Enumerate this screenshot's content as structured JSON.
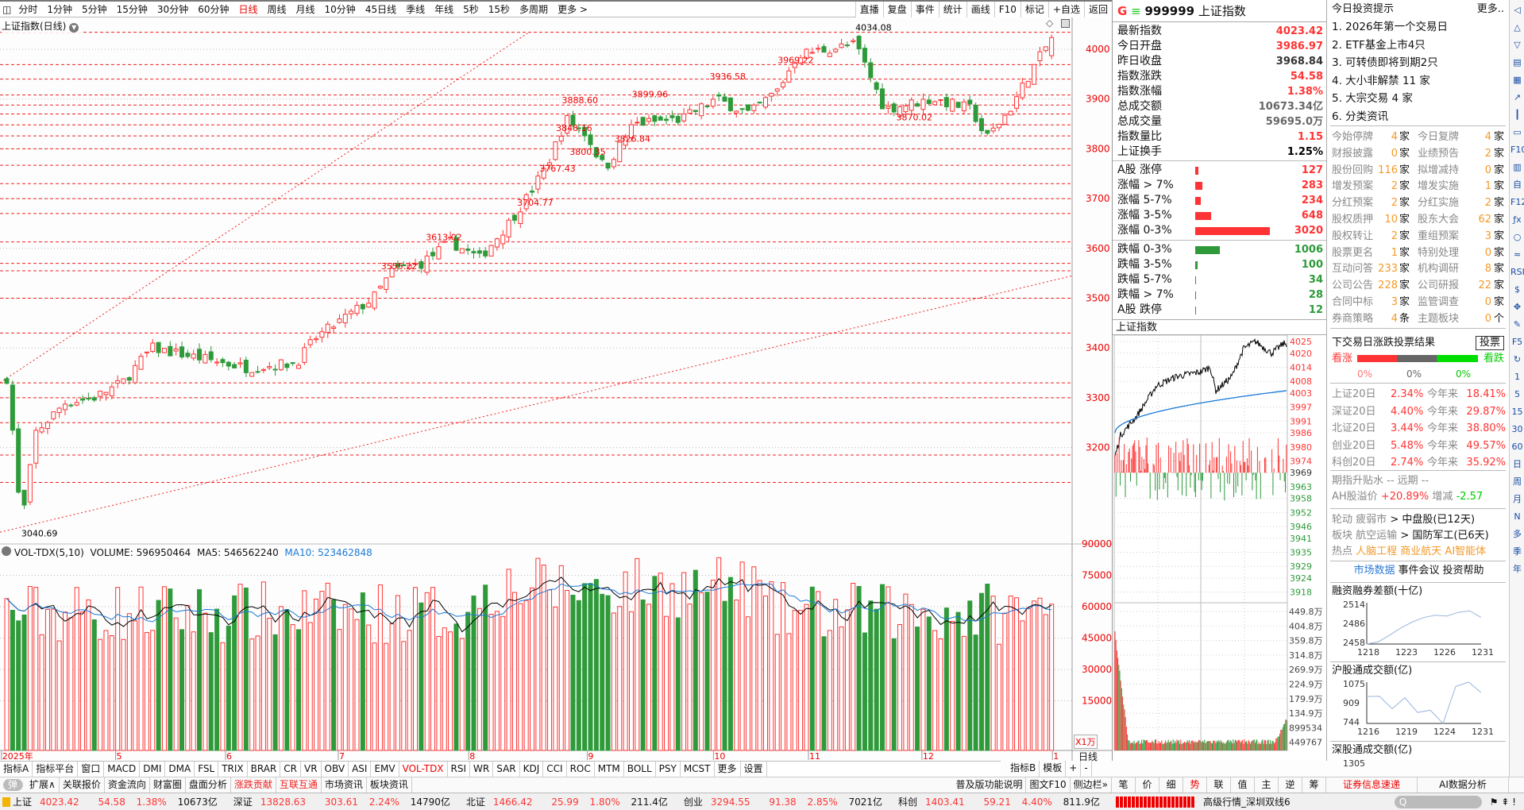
{
  "toolbar": {
    "periods": [
      "分时",
      "1分钟",
      "5分钟",
      "15分钟",
      "30分钟",
      "60分钟",
      "日线",
      "周线",
      "月线",
      "10分钟",
      "45日线",
      "季线",
      "年线",
      "5秒",
      "15秒",
      "多周期",
      "更多 >"
    ],
    "active": "日线",
    "buttons": [
      "直播",
      "复盘",
      "事件",
      "统计",
      "画线",
      "F10",
      "标记",
      "+自选",
      "返回"
    ]
  },
  "chart": {
    "title": "上证指数(日线)",
    "price_ticks": [
      "4000",
      "3900",
      "3800",
      "3700",
      "3600",
      "3500",
      "3400",
      "3300",
      "3200"
    ],
    "annotations": [
      "4034.08",
      "3969.22",
      "3936.58",
      "3899.96",
      "3888.60",
      "3848.16",
      "3826.84",
      "3800.35",
      "3870.02",
      "3767.43",
      "3704.77",
      "3613.02",
      "3555.22",
      "3040.69"
    ],
    "date_ticks": [
      "2025年",
      "5",
      "6",
      "7",
      "8",
      "9",
      "10",
      "11",
      "12",
      "1"
    ],
    "period_label": "日线"
  },
  "volume": {
    "header": "VOL-TDX(5,10)",
    "volume": "VOLUME: 596950464",
    "ma5": "MA5: 546562240",
    "ma10": "MA10: 523462848",
    "ticks": [
      "90000",
      "75000",
      "60000",
      "45000",
      "30000",
      "15000"
    ],
    "unit": "X1万"
  },
  "quote": {
    "brand_g": "G",
    "code": "999999",
    "name": "上证指数",
    "rows": [
      {
        "label": "最新指数",
        "value": "4023.42",
        "c": "red"
      },
      {
        "label": "今日开盘",
        "value": "3986.97",
        "c": "red"
      },
      {
        "label": "昨日收盘",
        "value": "3968.84",
        "c": "dark"
      },
      {
        "label": "指数涨跌",
        "value": "54.58",
        "c": "red"
      },
      {
        "label": "指数涨幅",
        "value": "1.38%",
        "c": "red"
      },
      {
        "label": "总成交额",
        "value": "10673.34亿",
        "c": "gray"
      },
      {
        "label": "总成交量",
        "value": "59695.0万",
        "c": "gray"
      },
      {
        "label": "指数量比",
        "value": "1.15",
        "c": "red"
      },
      {
        "label": "上证换手",
        "value": "1.25%",
        "c": "black"
      }
    ],
    "up": [
      {
        "label": "A股 涨停",
        "value": "127"
      },
      {
        "label": "涨幅 > 7%",
        "value": "283"
      },
      {
        "label": "涨幅 5-7%",
        "value": "234"
      },
      {
        "label": "涨幅 3-5%",
        "value": "648"
      },
      {
        "label": "涨幅 0-3%",
        "value": "3020"
      }
    ],
    "down": [
      {
        "label": "跌幅 0-3%",
        "value": "1006"
      },
      {
        "label": "跌幅 3-5%",
        "value": "100"
      },
      {
        "label": "跌幅 5-7%",
        "value": "34"
      },
      {
        "label": "跌幅 > 7%",
        "value": "28"
      },
      {
        "label": "A股 跌停",
        "value": "12"
      }
    ]
  },
  "intraday": {
    "title": "上证指数",
    "price_ticks": [
      "4025",
      "4020",
      "4014",
      "4008",
      "4003",
      "3997",
      "3991",
      "3986",
      "3980",
      "3974",
      "3969",
      "3963",
      "3958",
      "3952",
      "3946",
      "3941",
      "3935",
      "3929",
      "3924",
      "3918"
    ],
    "vol_ticks": [
      "449.8万",
      "404.8万",
      "359.8万",
      "314.8万",
      "269.9万",
      "224.9万",
      "179.9万",
      "134.9万",
      "899534",
      "449767"
    ]
  },
  "tips": {
    "title": "今日投资提示",
    "more": "更多..",
    "items": [
      "1. 2026年第一个交易日",
      "2. ETF基金上市4只",
      "3. 可转债即将到期2只",
      "4. 大小非解禁 11 家",
      "5. 大宗交易 4 家",
      "6. 分类资讯"
    ],
    "grid": [
      [
        "今始停牌",
        "4",
        "家",
        "今日复牌",
        "4",
        "家"
      ],
      [
        "财报披露",
        "0",
        "家",
        "业绩预告",
        "2",
        "家"
      ],
      [
        "股份回购",
        "116",
        "家",
        "拟增减持",
        "0",
        "家"
      ],
      [
        "增发预案",
        "2",
        "家",
        "增发实施",
        "1",
        "家"
      ],
      [
        "分红预案",
        "2",
        "家",
        "分红实施",
        "2",
        "家"
      ],
      [
        "股权质押",
        "10",
        "家",
        "股东大会",
        "62",
        "家"
      ],
      [
        "股权转让",
        "2",
        "家",
        "重组预案",
        "3",
        "家"
      ],
      [
        "股票更名",
        "1",
        "家",
        "特别处理",
        "0",
        "家"
      ],
      [
        "互动问答",
        "233",
        "家",
        "机构调研",
        "8",
        "家"
      ],
      [
        "公司公告",
        "228",
        "家",
        "公司研报",
        "22",
        "家"
      ],
      [
        "合同中标",
        "3",
        "家",
        "监管调查",
        "0",
        "家"
      ],
      [
        "券商策略",
        "4",
        "条",
        "主题板块",
        "0",
        "个"
      ]
    ],
    "vote": {
      "title": "下交易日涨跌投票结果",
      "button": "投票",
      "bull": "看涨",
      "bear": "看跌",
      "pcts": [
        "0%",
        "0%",
        "0%"
      ]
    },
    "perf": [
      [
        "上证20日",
        "2.34%",
        "今年来",
        "18.41%"
      ],
      [
        "深证20日",
        "4.40%",
        "今年来",
        "29.87%"
      ],
      [
        "北证20日",
        "3.44%",
        "今年来",
        "38.80%"
      ],
      [
        "创业20日",
        "5.48%",
        "今年来",
        "49.57%"
      ],
      [
        "科创20日",
        "2.74%",
        "今年来",
        "35.92%"
      ]
    ],
    "futures": "期指升贴水 -- 远期 --",
    "ah_label": "AH股溢价",
    "ah_value": "+20.89%",
    "ah_chg_label": "增减",
    "ah_chg": "-2.57",
    "rotation": {
      "label": "轮动",
      "from": "疲弱市",
      "to": "> 中盘股(已12天)"
    },
    "sector": {
      "label": "板块",
      "from": "航空运输",
      "to": "> 国防军工(已6天)"
    },
    "hot": {
      "label": "热点",
      "items": "人脑工程 商业航天 AI智能体"
    },
    "links": [
      "市场数据",
      "事件会议",
      "投资帮助"
    ],
    "mini": [
      {
        "title": "融资融券差额(十亿)",
        "yticks": [
          "2514",
          "2486",
          "2458"
        ],
        "xticks": [
          "1218",
          "1223",
          "1226",
          "1231"
        ],
        "values": [
          2458,
          2461,
          2470,
          2480,
          2488,
          2494,
          2497,
          2496,
          2501,
          2503,
          2494
        ]
      },
      {
        "title": "沪股通成交额(亿)",
        "yticks": [
          "1075",
          "909",
          "744"
        ],
        "xticks": [
          "1216",
          "1219",
          "1224",
          "1231"
        ],
        "values": [
          960,
          962,
          862,
          950,
          832,
          850,
          744,
          1040,
          1075,
          992
        ]
      },
      {
        "title": "深股通成交额(亿)",
        "yticks": [
          "1305"
        ]
      }
    ]
  },
  "side_icons": [
    "1",
    "5",
    "15",
    "30",
    "60",
    "日",
    "周",
    "月",
    "N",
    "多",
    "季",
    "年"
  ],
  "indicator_tabs": [
    "指标A",
    "指标平台",
    "窗口",
    "MACD",
    "DMI",
    "DMA",
    "FSL",
    "TRIX",
    "BRAR",
    "CR",
    "VR",
    "OBV",
    "ASI",
    "EMV",
    "VOL-TDX",
    "RSI",
    "WR",
    "SAR",
    "KDJ",
    "CCI",
    "ROC",
    "MTM",
    "BOLL",
    "PSY",
    "MCST",
    "更多",
    "设置"
  ],
  "indicator_right": [
    "指标B",
    "模板",
    "+",
    "-"
  ],
  "bottom_tabs": [
    "扩展∧",
    "关联报价",
    "资金流向",
    "财富圈",
    "盘面分析",
    "涨跌贡献",
    "互联互通",
    "市场资讯",
    "板块资讯"
  ],
  "bottom_right": [
    "普及版功能说明",
    "图文F10",
    "侧边栏»"
  ],
  "quote_tabs": [
    "笔",
    "价",
    "细",
    "势",
    "联",
    "值",
    "主",
    "逆",
    "筹"
  ],
  "news_tabs": [
    "证券信息速递",
    "AI数据分析"
  ],
  "toggle": "弹",
  "status": [
    {
      "name": "上证",
      "price": "4023.42",
      "chg": "54.58",
      "pct": "1.38%",
      "amt": "10673亿"
    },
    {
      "name": "深证",
      "price": "13828.63",
      "chg": "303.61",
      "pct": "2.24%",
      "amt": "14790亿"
    },
    {
      "name": "北证",
      "price": "1466.42",
      "chg": "25.99",
      "pct": "1.80%",
      "amt": "211.4亿"
    },
    {
      "name": "创业",
      "price": "3294.55",
      "chg": "91.38",
      "pct": "2.85%",
      "amt": "7021亿"
    },
    {
      "name": "科创",
      "price": "1403.41",
      "chg": "59.21",
      "pct": "4.40%",
      "amt": "811.9亿"
    }
  ],
  "status_server": "高级行情_深圳双线6",
  "colors": {
    "up": "#ff3333",
    "down": "#2e9a3a",
    "ma10": "#1a7ad8",
    "accent": "#e00000"
  }
}
